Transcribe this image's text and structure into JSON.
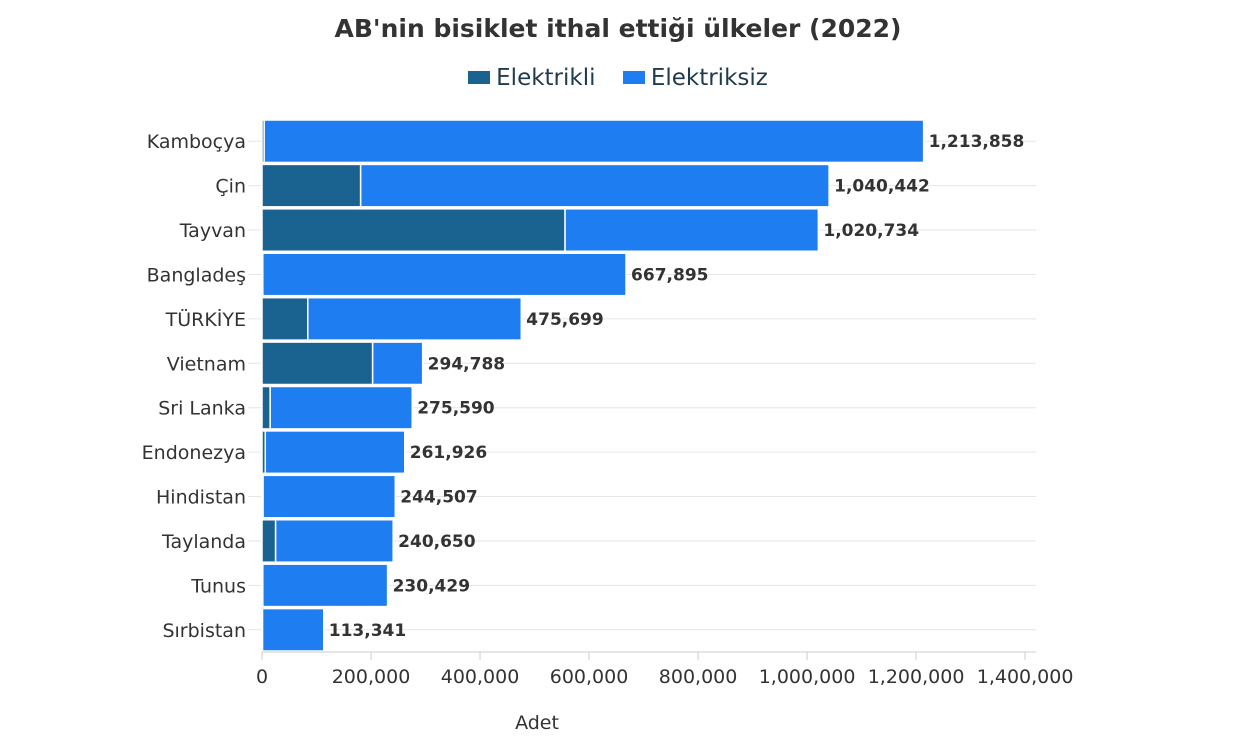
{
  "chart_data": {
    "type": "bar",
    "orientation": "horizontal",
    "stacked": true,
    "title": "AB'nin bisiklet ithal ettiği ülkeler (2022)",
    "xlabel": "Adet",
    "ylabel": "",
    "xlim": [
      0,
      1420000
    ],
    "xticks": [
      0,
      200000,
      400000,
      600000,
      800000,
      1000000,
      1200000,
      1400000
    ],
    "xtick_labels": [
      "0",
      "200,000",
      "400,000",
      "600,000",
      "800,000",
      "1,000,000",
      "1,200,000",
      "1,400,000"
    ],
    "grid": true,
    "legend_position": "top",
    "categories": [
      "Kamboçya",
      "Çin",
      "Tayvan",
      "Bangladeş",
      "TÜRKİYE",
      "Vietnam",
      "Sri Lanka",
      "Endonezya",
      "Hindistan",
      "Taylanda",
      "Tunus",
      "Sırbistan"
    ],
    "series": [
      {
        "name": "Elektrikli",
        "color": "#1a6290",
        "values": [
          4000,
          181000,
          556000,
          1500,
          84000,
          203000,
          15000,
          6000,
          2000,
          25000,
          1500,
          1000
        ]
      },
      {
        "name": "Elektriksiz",
        "color": "#1e7df0",
        "values": [
          1209858,
          859442,
          464734,
          666395,
          391699,
          91788,
          260590,
          255926,
          242507,
          215650,
          228929,
          112341
        ]
      }
    ],
    "totals": [
      1213858,
      1040442,
      1020734,
      667895,
      475699,
      294788,
      275590,
      261926,
      244507,
      240650,
      230429,
      113341
    ],
    "total_labels": [
      "1,213,858",
      "1,040,442",
      "1,020,734",
      "667,895",
      "475,699",
      "294,788",
      "275,590",
      "261,926",
      "244,507",
      "240,650",
      "230,429",
      "113,341"
    ]
  }
}
